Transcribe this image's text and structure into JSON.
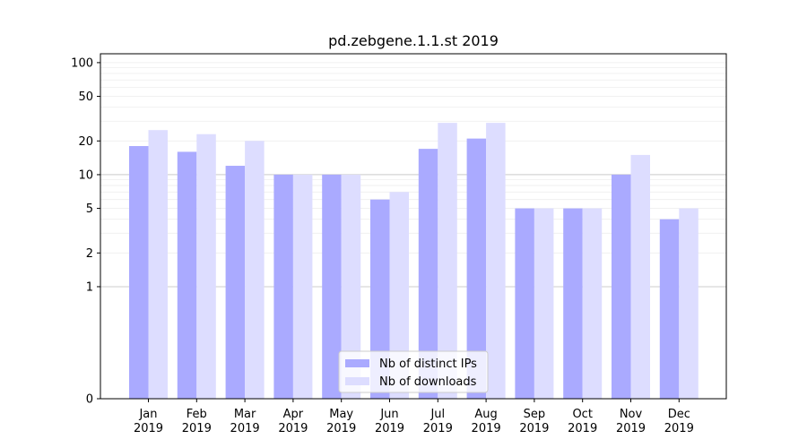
{
  "chart_data": {
    "type": "bar",
    "title": "pd.zebgene.1.1.st 2019",
    "xlabel": "",
    "ylabel": "",
    "y_scale": "symlog",
    "y_ticks": [
      0,
      1,
      2,
      5,
      10,
      20,
      50,
      100
    ],
    "y_tick_labels": [
      "0",
      "1",
      "2",
      "5",
      "10",
      "20",
      "50",
      "100"
    ],
    "ylim": [
      0,
      120
    ],
    "categories": [
      "Jan\n2019",
      "Feb\n2019",
      "Mar\n2019",
      "Apr\n2019",
      "May\n2019",
      "Jun\n2019",
      "Jul\n2019",
      "Aug\n2019",
      "Sep\n2019",
      "Oct\n2019",
      "Nov\n2019",
      "Dec\n2019"
    ],
    "series": [
      {
        "name": "Nb of distinct IPs",
        "color": "#aaaaff",
        "values": [
          18,
          16,
          12,
          10,
          10,
          6,
          17,
          21,
          5,
          5,
          10,
          4
        ]
      },
      {
        "name": "Nb of downloads",
        "color": "#ddddff",
        "values": [
          25,
          23,
          20,
          10,
          10,
          7,
          29,
          29,
          5,
          5,
          15,
          5
        ]
      }
    ],
    "legend_position": "bottom-center",
    "grid": true
  }
}
